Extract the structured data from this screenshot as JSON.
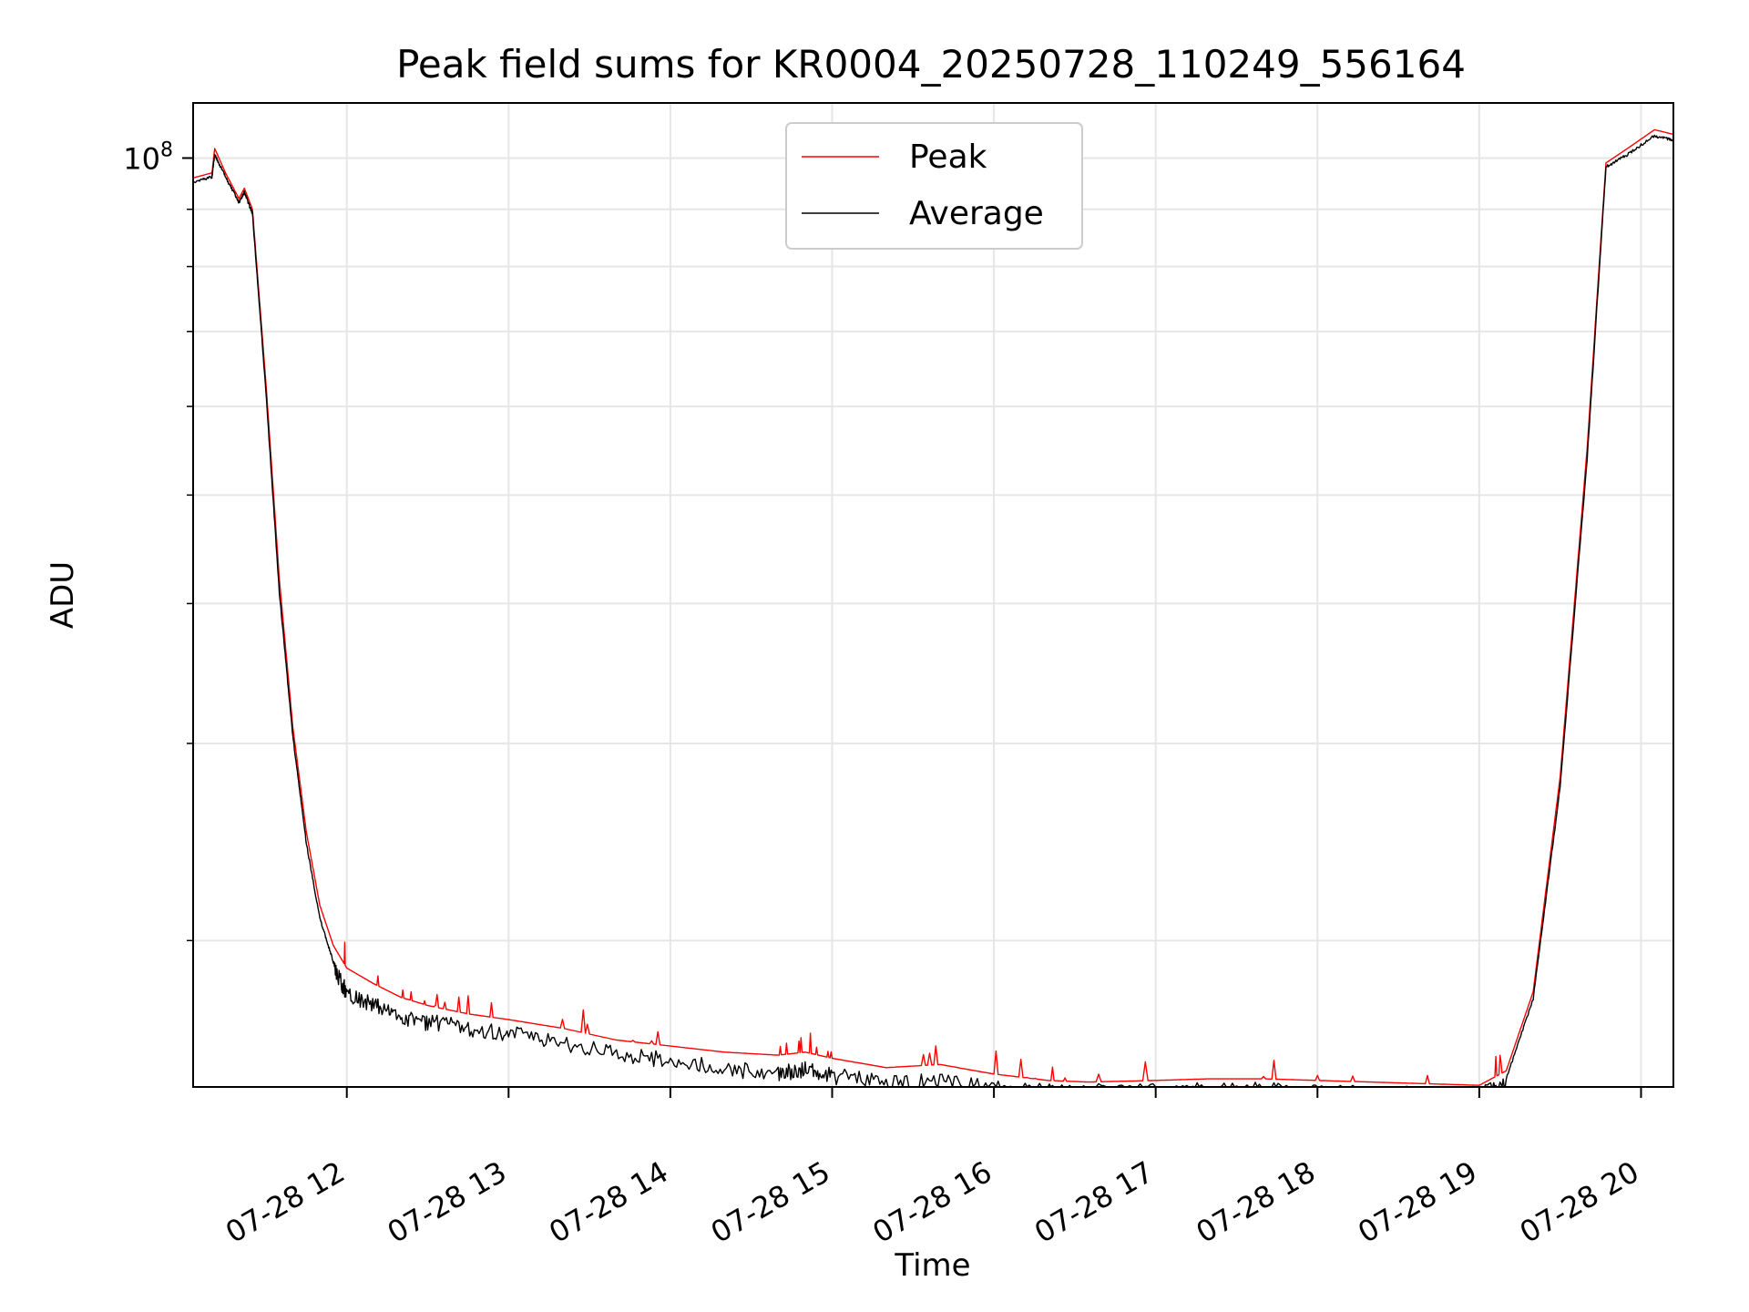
{
  "chart_data": {
    "type": "line",
    "title": "Peak field sums for KR0004_20250728_110249_556164",
    "xlabel": "Time",
    "ylabel": "ADU",
    "x_axis": "date",
    "y_scale": "log",
    "xlim": [
      "2025-07-28 11:03",
      "2025-07-28 20:12"
    ],
    "ylim": [
      14800000,
      112000000
    ],
    "x_ticks": [
      "07-28 12",
      "07-28 13",
      "07-28 14",
      "07-28 15",
      "07-28 16",
      "07-28 17",
      "07-28 18",
      "07-28 19",
      "07-28 20"
    ],
    "y_major_ticks": [
      {
        "value": 100000000,
        "base": "10",
        "exp": "8"
      }
    ],
    "y_minor_ticks": [
      20000000,
      30000000,
      40000000,
      50000000,
      60000000,
      70000000,
      80000000,
      90000000
    ],
    "grid": true,
    "legend": "top-center",
    "series": [
      {
        "name": "Peak",
        "color": "#ff0000",
        "x": [
          "2025-07-28 11:03",
          "2025-07-28 11:10",
          "2025-07-28 11:11",
          "2025-07-28 11:15",
          "2025-07-28 11:20",
          "2025-07-28 11:22",
          "2025-07-28 11:25",
          "2025-07-28 11:30",
          "2025-07-28 11:35",
          "2025-07-28 11:40",
          "2025-07-28 11:45",
          "2025-07-28 11:50",
          "2025-07-28 11:55",
          "2025-07-28 12:00",
          "2025-07-28 12:10",
          "2025-07-28 12:20",
          "2025-07-28 12:30",
          "2025-07-28 12:45",
          "2025-07-28 13:00",
          "2025-07-28 13:20",
          "2025-07-28 13:40",
          "2025-07-28 14:00",
          "2025-07-28 14:20",
          "2025-07-28 14:40",
          "2025-07-28 14:50",
          "2025-07-28 15:00",
          "2025-07-28 15:20",
          "2025-07-28 15:40",
          "2025-07-28 16:00",
          "2025-07-28 16:20",
          "2025-07-28 16:35",
          "2025-07-28 17:00",
          "2025-07-28 17:20",
          "2025-07-28 17:40",
          "2025-07-28 18:00",
          "2025-07-28 18:20",
          "2025-07-28 18:40",
          "2025-07-28 19:00",
          "2025-07-28 19:10",
          "2025-07-28 19:20",
          "2025-07-28 19:30",
          "2025-07-28 19:40",
          "2025-07-28 19:47",
          "2025-07-28 19:55",
          "2025-07-28 20:05",
          "2025-07-28 20:12"
        ],
        "y": [
          96000000,
          97000000,
          102000000,
          97000000,
          92000000,
          94000000,
          90000000,
          63000000,
          42000000,
          31000000,
          25000000,
          21500000,
          19800000,
          18900000,
          18300000,
          17800000,
          17500000,
          17200000,
          17000000,
          16700000,
          16300000,
          16100000,
          15900000,
          15800000,
          15900000,
          15700000,
          15400000,
          15500000,
          15200000,
          15000000,
          14950000,
          15000000,
          15050000,
          15050000,
          15000000,
          14950000,
          14900000,
          14850000,
          15300000,
          18000000,
          28000000,
          55000000,
          99000000,
          102000000,
          106000000,
          105000000
        ]
      },
      {
        "name": "Average",
        "color": "#000000",
        "x": [
          "2025-07-28 11:03",
          "2025-07-28 11:10",
          "2025-07-28 11:11",
          "2025-07-28 11:15",
          "2025-07-28 11:20",
          "2025-07-28 11:22",
          "2025-07-28 11:25",
          "2025-07-28 11:30",
          "2025-07-28 11:35",
          "2025-07-28 11:40",
          "2025-07-28 11:45",
          "2025-07-28 11:50",
          "2025-07-28 11:55",
          "2025-07-28 12:00",
          "2025-07-28 12:10",
          "2025-07-28 12:20",
          "2025-07-28 12:30",
          "2025-07-28 12:45",
          "2025-07-28 13:00",
          "2025-07-28 13:20",
          "2025-07-28 13:40",
          "2025-07-28 14:00",
          "2025-07-28 14:20",
          "2025-07-28 14:40",
          "2025-07-28 14:50",
          "2025-07-28 15:00",
          "2025-07-28 15:20",
          "2025-07-28 15:40",
          "2025-07-28 16:00",
          "2025-07-28 16:20",
          "2025-07-28 16:35",
          "2025-07-28 17:00",
          "2025-07-28 17:20",
          "2025-07-28 17:40",
          "2025-07-28 18:00",
          "2025-07-28 18:20",
          "2025-07-28 18:40",
          "2025-07-28 19:00",
          "2025-07-28 19:10",
          "2025-07-28 19:20",
          "2025-07-28 19:30",
          "2025-07-28 19:40",
          "2025-07-28 19:47",
          "2025-07-28 19:55",
          "2025-07-28 20:05",
          "2025-07-28 20:12"
        ],
        "y": [
          95500000,
          96500000,
          101000000,
          96500000,
          91500000,
          93500000,
          89500000,
          62000000,
          41000000,
          30500000,
          24500000,
          21000000,
          19200000,
          18300000,
          17800000,
          17400000,
          17200000,
          17000000,
          16800000,
          16500000,
          16100000,
          15900000,
          15600000,
          15500000,
          15600000,
          15400000,
          15200000,
          15200000,
          15000000,
          14900000,
          14900000,
          14900000,
          14950000,
          14950000,
          14900000,
          14850000,
          14850000,
          14800000,
          15100000,
          17800000,
          27500000,
          54000000,
          98500000,
          101000000,
          105000000,
          104000000
        ]
      }
    ]
  }
}
